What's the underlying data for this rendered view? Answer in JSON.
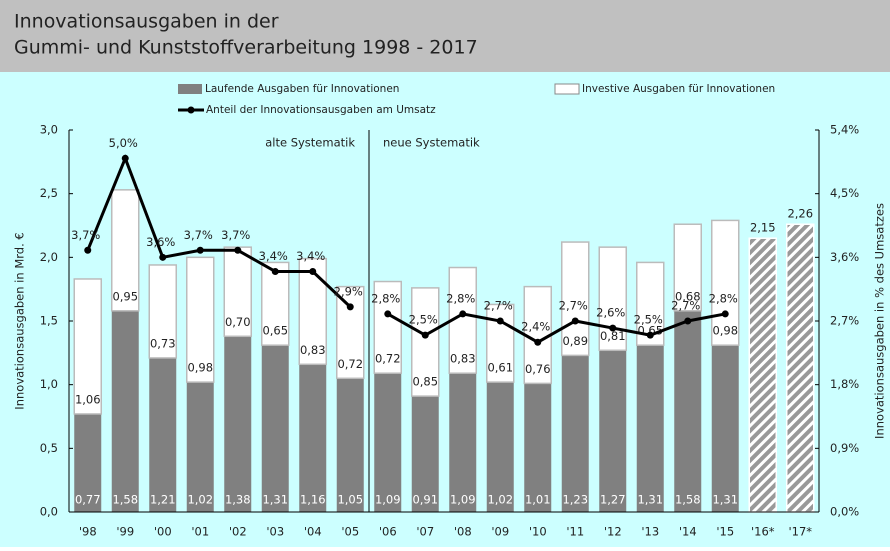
{
  "chart_data": {
    "type": "bar",
    "title": "Innovationsausgaben in der",
    "subtitle": "Gummi- und Kunststoffverarbeitung 1998 - 2017",
    "y_label": "Innovationsausgaben in Mrd. €",
    "y2_label": "Innovationsausgaben in % des Umsatzes",
    "annotation": {
      "left": "alte Systematik",
      "right": "neue Systematik",
      "after_index": 7
    },
    "categories": [
      "'98",
      "'99",
      "'00",
      "'01",
      "'02",
      "'03",
      "'04",
      "'05",
      "'06",
      "'07",
      "'08",
      "'09",
      "'10",
      "'11",
      "'12",
      "'13",
      "'14",
      "'15",
      "'16*",
      "'17*"
    ],
    "series": [
      {
        "name": "Laufende Ausgaben für Innovationen",
        "color": "#808080",
        "kind": "stack",
        "values": [
          0.77,
          1.58,
          1.21,
          1.02,
          1.38,
          1.31,
          1.16,
          1.05,
          1.09,
          0.91,
          1.09,
          1.02,
          1.01,
          1.23,
          1.27,
          1.31,
          1.58,
          1.31,
          null,
          null
        ],
        "value_labels": [
          "0,77",
          "1,58",
          "1,21",
          "1,02",
          "1,38",
          "1,31",
          "1,16",
          "1,05",
          "1,09",
          "0,91",
          "1,09",
          "1,02",
          "1,01",
          "1,23",
          "1,27",
          "1,31",
          "1,58",
          "1,31",
          null,
          null
        ]
      },
      {
        "name": "Investive Ausgaben für Innovationen",
        "color": "#ffffff",
        "kind": "stack",
        "values": [
          1.06,
          0.95,
          0.73,
          0.98,
          0.7,
          0.65,
          0.83,
          0.72,
          0.72,
          0.85,
          0.83,
          0.61,
          0.76,
          0.89,
          0.81,
          0.65,
          0.68,
          0.98,
          null,
          null
        ],
        "value_labels": [
          "1,06",
          "0,95",
          "0,73",
          "0,98",
          "0,70",
          "0,65",
          "0,83",
          "0,72",
          "0,72",
          "0,85",
          "0,83",
          "0,61",
          "0,76",
          "0,89",
          "0,81",
          "0,65",
          "0,68",
          "0,98",
          null,
          null
        ]
      },
      {
        "color": "#999999",
        "kind": "hatched",
        "values": [
          null,
          null,
          null,
          null,
          null,
          null,
          null,
          null,
          null,
          null,
          null,
          null,
          null,
          null,
          null,
          null,
          null,
          null,
          2.15,
          2.26
        ],
        "value_labels": [
          null,
          null,
          null,
          null,
          null,
          null,
          null,
          null,
          null,
          null,
          null,
          null,
          null,
          null,
          null,
          null,
          null,
          null,
          "2,15",
          "2,26"
        ]
      },
      {
        "name": "Anteil der Innovationsausgaben am Umsatz",
        "color": "#000000",
        "kind": "line",
        "axis": "y2",
        "values": [
          3.7,
          5.0,
          3.6,
          3.7,
          3.7,
          3.4,
          3.4,
          2.9,
          2.8,
          2.5,
          2.8,
          2.7,
          2.4,
          2.7,
          2.6,
          2.5,
          2.7,
          2.8,
          null,
          null
        ],
        "value_labels": [
          "3,7%",
          "5,0%",
          "3,6%",
          "3,7%",
          "3,7%",
          "3,4%",
          "3,4%",
          "2,9%",
          "2,8%",
          "2,5%",
          "2,8%",
          "2,7%",
          "2,4%",
          "2,7%",
          "2,6%",
          "2,5%",
          "2,7%",
          "2,8%",
          null,
          null
        ]
      }
    ],
    "ylim": [
      0,
      3
    ],
    "yticks": [
      {
        "value": 0,
        "label": "0,0"
      },
      {
        "value": 0.5,
        "label": "0,5"
      },
      {
        "value": 1,
        "label": "1,0"
      },
      {
        "value": 1.5,
        "label": "1,5"
      },
      {
        "value": 2,
        "label": "2,0"
      },
      {
        "value": 2.5,
        "label": "2,5"
      },
      {
        "value": 3,
        "label": "3,0"
      }
    ],
    "y2lim": [
      0,
      5.4
    ],
    "y2ticks": [
      {
        "value": 0,
        "label": "0,0%"
      },
      {
        "value": 0.9,
        "label": "0,9%"
      },
      {
        "value": 1.8,
        "label": "1,8%"
      },
      {
        "value": 2.7,
        "label": "2,7%"
      },
      {
        "value": 3.6,
        "label": "3,6%"
      },
      {
        "value": 4.5,
        "label": "4,5%"
      },
      {
        "value": 5.4,
        "label": "5,4%"
      }
    ],
    "grid": false
  }
}
